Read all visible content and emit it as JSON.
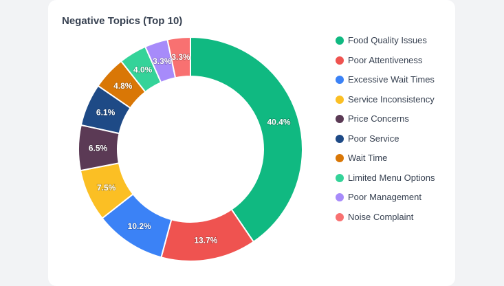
{
  "colors": {
    "card_bg": "#ffffff",
    "page_bg": "#f2f3f5",
    "title": "#374151"
  },
  "chart_data": {
    "type": "pie",
    "variant": "donut",
    "title": "Negative Topics (Top 10)",
    "legend_position": "right",
    "categories": [
      "Food Quality Issues",
      "Poor Attentiveness",
      "Excessive Wait Times",
      "Service Inconsistency",
      "Price Concerns",
      "Poor Service",
      "Wait Time",
      "Limited Menu Options",
      "Poor Management",
      "Noise Complaint"
    ],
    "values": [
      40.4,
      13.7,
      10.2,
      7.5,
      6.5,
      6.1,
      4.8,
      4.0,
      3.3,
      3.3
    ],
    "labels": [
      "40.4%",
      "13.7%",
      "10.2%",
      "7.5%",
      "6.5%",
      "6.1%",
      "4.8%",
      "4.0%",
      "3.3%",
      "3.3%"
    ],
    "colors": [
      "#10b981",
      "#ef5350",
      "#3b82f6",
      "#fbbf24",
      "#5b3a55",
      "#1e4a86",
      "#d97706",
      "#34d399",
      "#a78bfa",
      "#f87171"
    ]
  }
}
